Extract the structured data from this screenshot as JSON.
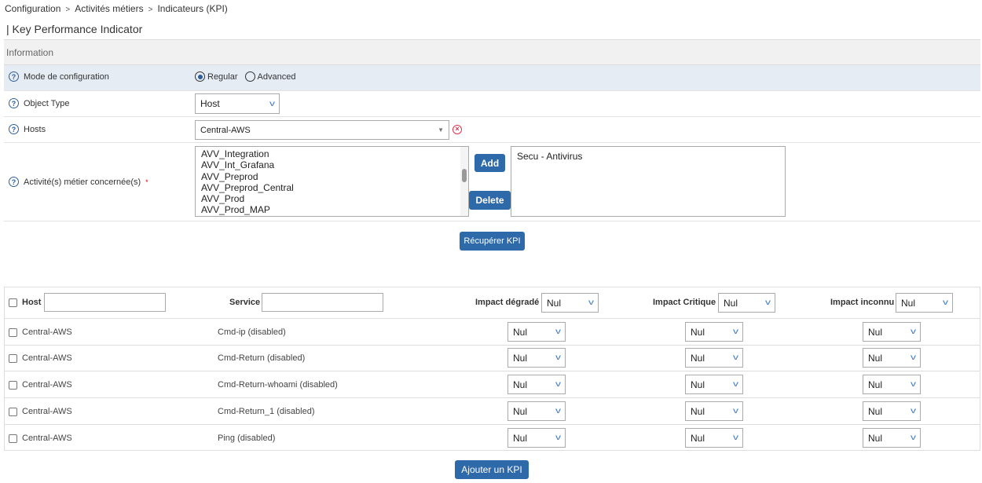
{
  "breadcrumb": [
    "Configuration",
    "Activités métiers",
    "Indicateurs (KPI)"
  ],
  "breadcrumb_sep": ">",
  "page_title": "| Key Performance Indicator",
  "section": "Information",
  "form": {
    "mode": {
      "label": "Mode de configuration",
      "options": [
        "Regular",
        "Advanced"
      ],
      "selected": "Regular"
    },
    "object_type": {
      "label": "Object Type",
      "value": "Host"
    },
    "hosts": {
      "label": "Hosts",
      "value": "Central-AWS"
    },
    "activities": {
      "label": "Activité(s) métier concernée(s)",
      "required": "*",
      "available": [
        "AVV_Integration",
        "AVV_Int_Grafana",
        "AVV_Preprod",
        "AVV_Preprod_Central",
        "AVV_Prod",
        "AVV_Prod_MAP"
      ],
      "selected": [
        "Secu - Antivirus"
      ],
      "add_label": "Add",
      "delete_label": "Delete"
    }
  },
  "fetch_label": "Récupérer KPI",
  "table": {
    "headers": {
      "host": "Host",
      "service": "Service",
      "degraded": "Impact dégradé",
      "critical": "Impact Critique",
      "unknown": "Impact inconnu"
    },
    "header_values": {
      "host": "",
      "service": "",
      "degraded": "Nul",
      "critical": "Nul",
      "unknown": "Nul"
    },
    "rows": [
      {
        "host": "Central-AWS",
        "service": "Cmd-ip (disabled)",
        "degraded": "Nul",
        "critical": "Nul",
        "unknown": "Nul"
      },
      {
        "host": "Central-AWS",
        "service": "Cmd-Return (disabled)",
        "degraded": "Nul",
        "critical": "Nul",
        "unknown": "Nul"
      },
      {
        "host": "Central-AWS",
        "service": "Cmd-Return-whoami (disabled)",
        "degraded": "Nul",
        "critical": "Nul",
        "unknown": "Nul"
      },
      {
        "host": "Central-AWS",
        "service": "Cmd-Return_1 (disabled)",
        "degraded": "Nul",
        "critical": "Nul",
        "unknown": "Nul"
      },
      {
        "host": "Central-AWS",
        "service": "Ping (disabled)",
        "degraded": "Nul",
        "critical": "Nul",
        "unknown": "Nul"
      }
    ]
  },
  "add_kpi_label": "Ajouter un KPI",
  "colors": {
    "button": "#2e69aa",
    "mode_row": "#e6ecf4",
    "clear": "#e0324b"
  }
}
